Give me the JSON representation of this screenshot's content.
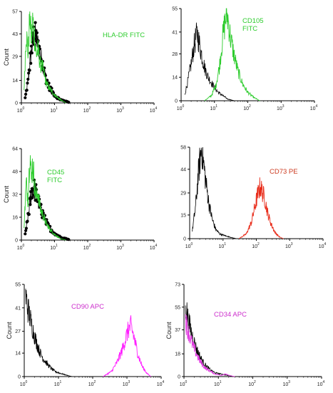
{
  "chart_data": [
    {
      "type": "histogram",
      "marker_label_lines": [
        "HLA-DR FITC"
      ],
      "marker_color": "#2ecc2e",
      "ylabel": "Count",
      "xscale": "log",
      "xlim": [
        1,
        10000
      ],
      "ylim": [
        0,
        57
      ],
      "yticks": [
        0,
        14,
        29,
        43,
        57
      ],
      "xtick_exponents": [
        0,
        1,
        2,
        3,
        4
      ],
      "overlay_style": "dots",
      "series": [
        {
          "color": "#000000",
          "role": "control",
          "style": "dots",
          "points": [
            [
              1.3,
              3
            ],
            [
              1.6,
              14
            ],
            [
              1.9,
              29
            ],
            [
              2.1,
              35
            ],
            [
              2.4,
              43
            ],
            [
              2.7,
              41
            ],
            [
              3.1,
              37
            ],
            [
              3.6,
              31
            ],
            [
              4.3,
              25
            ],
            [
              5.2,
              17
            ],
            [
              6.5,
              11
            ],
            [
              8.5,
              7
            ],
            [
              11,
              4
            ],
            [
              15,
              2
            ],
            [
              22,
              1
            ],
            [
              30,
              0
            ]
          ]
        },
        {
          "color": "#2ecc2e",
          "role": "marker",
          "points": [
            [
              1.2,
              8
            ],
            [
              1.4,
              45
            ],
            [
              1.6,
              30
            ],
            [
              1.8,
              57
            ],
            [
              2.0,
              38
            ],
            [
              2.2,
              52
            ],
            [
              2.5,
              40
            ],
            [
              2.8,
              30
            ],
            [
              3.2,
              33
            ],
            [
              3.7,
              24
            ],
            [
              4.4,
              22
            ],
            [
              5.5,
              13
            ],
            [
              7,
              9
            ],
            [
              10,
              5
            ],
            [
              15,
              2
            ],
            [
              22,
              0
            ]
          ]
        }
      ]
    },
    {
      "type": "histogram",
      "marker_label_lines": [
        "CD105",
        "FITC"
      ],
      "marker_color": "#2ecc2e",
      "ylabel": "",
      "xscale": "log",
      "xlim": [
        1,
        10000
      ],
      "ylim": [
        0,
        55
      ],
      "yticks": [
        0,
        14,
        28,
        41,
        55
      ],
      "xtick_exponents": [
        0,
        1,
        2,
        3,
        4
      ],
      "overlay_style": "line",
      "series": [
        {
          "color": "#000000",
          "role": "control",
          "points": [
            [
              1.3,
              4
            ],
            [
              1.6,
              12
            ],
            [
              2.0,
              22
            ],
            [
              2.4,
              32
            ],
            [
              2.8,
              38
            ],
            [
              3.1,
              40
            ],
            [
              3.6,
              33
            ],
            [
              4.3,
              26
            ],
            [
              5.2,
              19
            ],
            [
              6.5,
              14
            ],
            [
              8,
              11
            ],
            [
              10,
              8
            ],
            [
              13,
              5
            ],
            [
              18,
              3
            ],
            [
              25,
              1
            ],
            [
              40,
              0
            ]
          ]
        },
        {
          "color": "#2ecc2e",
          "role": "marker",
          "points": [
            [
              5,
              0
            ],
            [
              8,
              3
            ],
            [
              11,
              9
            ],
            [
              14,
              20
            ],
            [
              17,
              35
            ],
            [
              20,
              45
            ],
            [
              23,
              52
            ],
            [
              26,
              48
            ],
            [
              30,
              38
            ],
            [
              38,
              28
            ],
            [
              50,
              18
            ],
            [
              70,
              10
            ],
            [
              100,
              5
            ],
            [
              150,
              2
            ],
            [
              230,
              0
            ]
          ]
        }
      ]
    },
    {
      "type": "histogram",
      "marker_label_lines": [
        "CD45",
        "FITC"
      ],
      "marker_color": "#2ecc2e",
      "ylabel": "Count",
      "xscale": "log",
      "xlim": [
        1,
        10000
      ],
      "ylim": [
        0,
        64
      ],
      "yticks": [
        0,
        16,
        32,
        48,
        64
      ],
      "xtick_exponents": [
        0,
        1,
        2,
        3,
        4
      ],
      "overlay_style": "dots",
      "series": [
        {
          "color": "#000000",
          "role": "control",
          "style": "dots",
          "points": [
            [
              1.3,
              4
            ],
            [
              1.6,
              16
            ],
            [
              1.9,
              30
            ],
            [
              2.2,
              37
            ],
            [
              2.5,
              35
            ],
            [
              2.9,
              31
            ],
            [
              3.4,
              25
            ],
            [
              4.1,
              20
            ],
            [
              5,
              15
            ],
            [
              6.3,
              10
            ],
            [
              8,
              7
            ],
            [
              11,
              4
            ],
            [
              15,
              2
            ],
            [
              22,
              1
            ],
            [
              30,
              0
            ]
          ]
        },
        {
          "color": "#2ecc2e",
          "role": "marker",
          "points": [
            [
              1.2,
              10
            ],
            [
              1.4,
              40
            ],
            [
              1.6,
              28
            ],
            [
              1.8,
              64
            ],
            [
              2.0,
              42
            ],
            [
              2.2,
              55
            ],
            [
              2.5,
              38
            ],
            [
              2.8,
              30
            ],
            [
              3.2,
              33
            ],
            [
              3.7,
              22
            ],
            [
              4.4,
              18
            ],
            [
              5.5,
              12
            ],
            [
              7,
              8
            ],
            [
              10,
              4
            ],
            [
              15,
              1
            ],
            [
              22,
              0
            ]
          ]
        }
      ]
    },
    {
      "type": "histogram",
      "marker_label_lines": [
        "CD73 PE"
      ],
      "marker_color": "#cc3a1f",
      "ylabel": "",
      "xscale": "log",
      "xlim": [
        1,
        10000
      ],
      "ylim": [
        0,
        58
      ],
      "yticks": [
        0,
        15,
        29,
        44,
        58
      ],
      "xtick_exponents": [
        0,
        1,
        2,
        3,
        4
      ],
      "overlay_style": "line",
      "series": [
        {
          "color": "#000000",
          "role": "control",
          "points": [
            [
              1.2,
              5
            ],
            [
              1.5,
              20
            ],
            [
              1.8,
              40
            ],
            [
              2.1,
              52
            ],
            [
              2.3,
              58
            ],
            [
              2.6,
              48
            ],
            [
              3.1,
              35
            ],
            [
              3.8,
              22
            ],
            [
              4.8,
              12
            ],
            [
              6,
              6
            ],
            [
              8,
              3
            ],
            [
              11,
              2
            ],
            [
              16,
              1
            ],
            [
              25,
              0
            ]
          ]
        },
        {
          "color": "#e82a18",
          "role": "marker",
          "points": [
            [
              30,
              0
            ],
            [
              50,
              3
            ],
            [
              70,
              10
            ],
            [
              90,
              20
            ],
            [
              110,
              28
            ],
            [
              130,
              33
            ],
            [
              150,
              30
            ],
            [
              180,
              25
            ],
            [
              220,
              16
            ],
            [
              280,
              9
            ],
            [
              360,
              4
            ],
            [
              500,
              1
            ],
            [
              650,
              0
            ]
          ]
        }
      ]
    },
    {
      "type": "histogram",
      "marker_label_lines": [
        "CD90 APC"
      ],
      "marker_color": "#cc2ecc",
      "ylabel": "Count",
      "xscale": "log",
      "xlim": [
        1,
        10000
      ],
      "ylim": [
        0,
        55
      ],
      "yticks": [
        0,
        14,
        27,
        41,
        55
      ],
      "xtick_exponents": [
        0,
        1,
        2,
        3,
        4
      ],
      "overlay_style": "line",
      "series": [
        {
          "color": "#000000",
          "role": "control",
          "points": [
            [
              1.1,
              48
            ],
            [
              1.3,
              40
            ],
            [
              1.6,
              32
            ],
            [
              1.9,
              26
            ],
            [
              2.3,
              20
            ],
            [
              2.8,
              15
            ],
            [
              3.5,
              11
            ],
            [
              4.5,
              8
            ],
            [
              6,
              5
            ],
            [
              8,
              3
            ],
            [
              11,
              2
            ],
            [
              16,
              1
            ],
            [
              25,
              0
            ]
          ]
        },
        {
          "color": "#ff1fff",
          "role": "marker",
          "points": [
            [
              200,
              0
            ],
            [
              350,
              3
            ],
            [
              500,
              8
            ],
            [
              700,
              15
            ],
            [
              900,
              22
            ],
            [
              1100,
              28
            ],
            [
              1300,
              30
            ],
            [
              1500,
              26
            ],
            [
              1800,
              19
            ],
            [
              2200,
              12
            ],
            [
              2800,
              6
            ],
            [
              3800,
              2
            ],
            [
              5000,
              0
            ]
          ]
        }
      ]
    },
    {
      "type": "histogram",
      "marker_label_lines": [
        "CD34 APC"
      ],
      "marker_color": "#cc2ecc",
      "ylabel": "Count",
      "xscale": "log",
      "xlim": [
        1,
        10000
      ],
      "ylim": [
        0,
        73
      ],
      "yticks": [
        0,
        18,
        37,
        55,
        73
      ],
      "xtick_exponents": [
        0,
        1,
        2,
        3,
        4
      ],
      "overlay_style": "line",
      "series": [
        {
          "color": "#000000",
          "role": "control",
          "points": [
            [
              1.1,
              58
            ],
            [
              1.3,
              46
            ],
            [
              1.6,
              36
            ],
            [
              1.9,
              29
            ],
            [
              2.3,
              22
            ],
            [
              2.8,
              17
            ],
            [
              3.5,
              12
            ],
            [
              4.5,
              8
            ],
            [
              6,
              5
            ],
            [
              8,
              3
            ],
            [
              12,
              2
            ],
            [
              18,
              1
            ],
            [
              30,
              0
            ]
          ]
        },
        {
          "color": "#e23de2",
          "role": "marker",
          "points": [
            [
              1.1,
              45
            ],
            [
              1.3,
              37
            ],
            [
              1.6,
              29
            ],
            [
              1.9,
              23
            ],
            [
              2.3,
              18
            ],
            [
              2.8,
              13
            ],
            [
              3.5,
              9
            ],
            [
              4.5,
              6
            ],
            [
              6,
              4
            ],
            [
              8,
              2
            ],
            [
              12,
              1
            ],
            [
              16,
              2
            ],
            [
              20,
              1
            ],
            [
              30,
              0
            ]
          ]
        }
      ]
    }
  ]
}
